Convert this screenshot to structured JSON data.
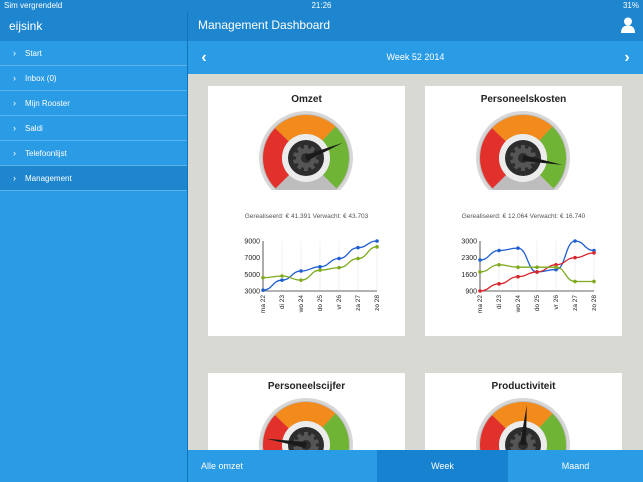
{
  "status": {
    "carrier": "Sim vergrendeld",
    "time": "21:26",
    "battery": "31%"
  },
  "sidebar": {
    "title": "eijsink",
    "items": [
      {
        "label": "Start"
      },
      {
        "label": "Inbox (0)"
      },
      {
        "label": "Mijn Rooster"
      },
      {
        "label": "Saldi"
      },
      {
        "label": "Telefoonlijst"
      },
      {
        "label": "Management",
        "active": true
      }
    ]
  },
  "header": {
    "title": "Management Dashboard",
    "week": "Week 52 2014"
  },
  "cards": [
    {
      "title": "Omzet",
      "caption": "Gerealiseerd: € 41.391 Verwacht: € 43.703",
      "needle_fraction": 0.75
    },
    {
      "title": "Personeelskosten",
      "caption": "Gerealiseerd: € 12.064 Verwacht: € 16.740",
      "needle_fraction": 0.87
    },
    {
      "title": "Personeelscijfer",
      "needle_fraction": 0.2
    },
    {
      "title": "Productiviteit",
      "needle_fraction": 0.52
    }
  ],
  "chart_data": [
    {
      "type": "line",
      "categories": [
        "ma 22",
        "di 23",
        "wo 24",
        "do 25",
        "vr 26",
        "za 27",
        "zo 28"
      ],
      "yticks": [
        "9000",
        "7000",
        "5000",
        "3000"
      ],
      "ylim": [
        3000,
        9000
      ],
      "series": [
        {
          "color": "#1f5fd1",
          "values": [
            3100,
            4300,
            5400,
            5900,
            6900,
            8200,
            9000
          ]
        },
        {
          "color": "#7faa1f",
          "values": [
            4600,
            4800,
            4300,
            5500,
            5800,
            6900,
            8300
          ]
        }
      ]
    },
    {
      "type": "line",
      "categories": [
        "ma 22",
        "di 23",
        "wo 24",
        "do 25",
        "vr 26",
        "za 27",
        "zo 28"
      ],
      "yticks": [
        "3000",
        "2300",
        "1600",
        "900"
      ],
      "ylim": [
        900,
        3000
      ],
      "series": [
        {
          "color": "#1f5fd1",
          "values": [
            2200,
            2600,
            2700,
            1700,
            1800,
            3000,
            2600
          ]
        },
        {
          "color": "#d8242b",
          "values": [
            900,
            1200,
            1500,
            1700,
            2000,
            2300,
            2500
          ]
        },
        {
          "color": "#7faa1f",
          "values": [
            1700,
            2000,
            1900,
            1900,
            1900,
            1300,
            1300
          ]
        }
      ]
    }
  ],
  "bottom": {
    "omzet": "Alle omzet",
    "week": "Week",
    "maand": "Maand"
  },
  "colors": {
    "primary": "#1d86cf",
    "light": "#2a9be5",
    "gauge_red": "#e2312b",
    "gauge_orange": "#f28a1c",
    "gauge_green": "#6fb434"
  }
}
